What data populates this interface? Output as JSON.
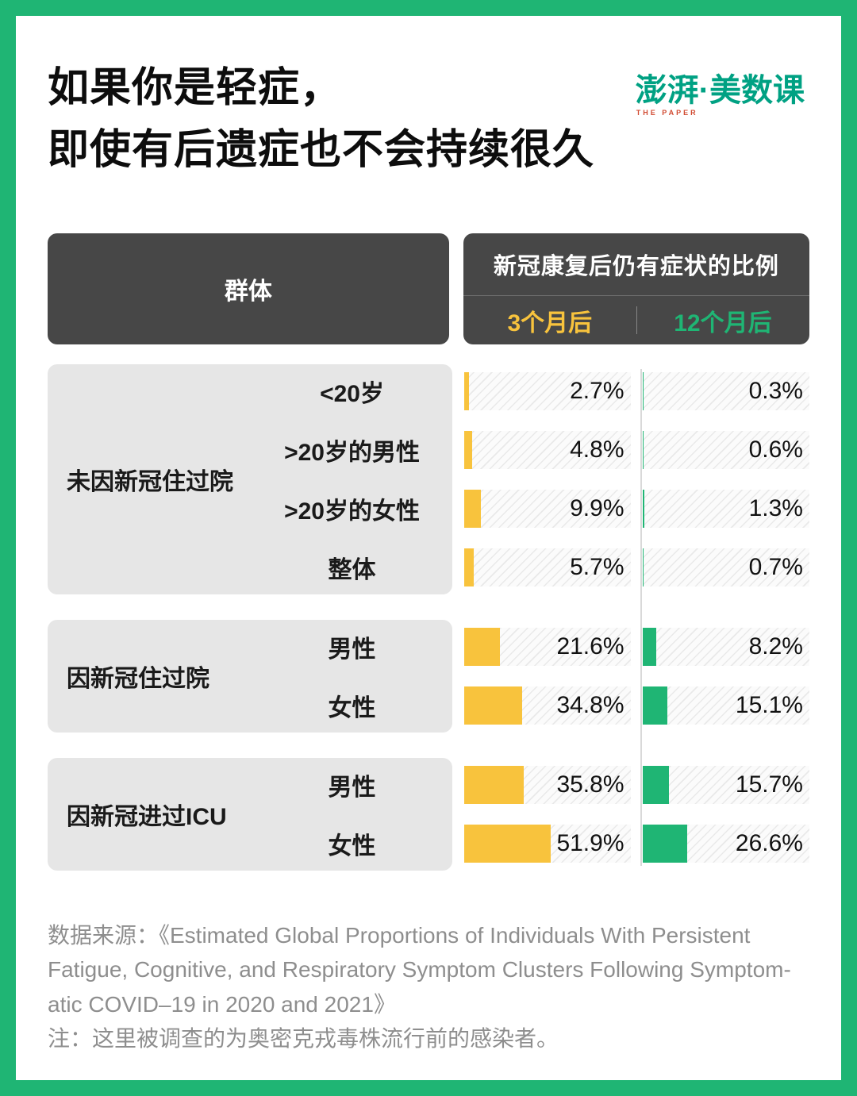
{
  "colors": {
    "frame": "#1FB574",
    "dark": "#474747",
    "yellow": "#F8C33D",
    "green": "#1FB574",
    "brand": "#00A183",
    "group_bg": "#E6E6E6"
  },
  "header": {
    "title_lines": [
      "如果你是轻症，",
      "即使有后遗症也不会持续很久"
    ],
    "logo": {
      "main": "澎湃",
      "sub": "THE PAPER",
      "rest": "·美数课"
    }
  },
  "table": {
    "group_col_header": "群体",
    "value_header": "新冠康复后仍有症状的比例",
    "col_3m": "3个月后",
    "col_12m": "12个月后",
    "groups": [
      {
        "label": "未因新冠住过院",
        "rows": [
          {
            "label": "<20岁",
            "m3": 2.7,
            "m3_label": "2.7%",
            "m12": 0.3,
            "m12_label": "0.3%"
          },
          {
            "label": ">20岁的男性",
            "m3": 4.8,
            "m3_label": "4.8%",
            "m12": 0.6,
            "m12_label": "0.6%"
          },
          {
            "label": ">20岁的女性",
            "m3": 9.9,
            "m3_label": "9.9%",
            "m12": 1.3,
            "m12_label": "1.3%"
          },
          {
            "label": "整体",
            "m3": 5.7,
            "m3_label": "5.7%",
            "m12": 0.7,
            "m12_label": "0.7%"
          }
        ]
      },
      {
        "label": "因新冠住过院",
        "rows": [
          {
            "label": "男性",
            "m3": 21.6,
            "m3_label": "21.6%",
            "m12": 8.2,
            "m12_label": "8.2%"
          },
          {
            "label": "女性",
            "m3": 34.8,
            "m3_label": "34.8%",
            "m12": 15.1,
            "m12_label": "15.1%"
          }
        ]
      },
      {
        "label": "因新冠进过ICU",
        "rows": [
          {
            "label": "男性",
            "m3": 35.8,
            "m3_label": "35.8%",
            "m12": 15.7,
            "m12_label": "15.7%"
          },
          {
            "label": "女性",
            "m3": 51.9,
            "m3_label": "51.9%",
            "m12": 26.6,
            "m12_label": "26.6%"
          }
        ]
      }
    ]
  },
  "footer": {
    "lines": [
      "数据来源：《Estimated Global Proportions of Individuals With Persistent",
      "Fatigue, Cognitive, and Respiratory Symptom Clusters Following Symptom-",
      "atic COVID–19 in 2020 and 2021》",
      "注：这里被调查的为奥密克戎毒株流行前的感染者。"
    ]
  },
  "chart_data": {
    "type": "bar",
    "title": "如果你是轻症，即使有后遗症也不会持续很久",
    "categories": [
      "未因新冠住过院 / <20岁",
      "未因新冠住过院 / >20岁的男性",
      "未因新冠住过院 / >20岁的女性",
      "未因新冠住过院 / 整体",
      "因新冠住过院 / 男性",
      "因新冠住过院 / 女性",
      "因新冠进过ICU / 男性",
      "因新冠进过ICU / 女性"
    ],
    "series": [
      {
        "name": "3个月后",
        "color": "#F8C33D",
        "values": [
          2.7,
          4.8,
          9.9,
          5.7,
          21.6,
          34.8,
          35.8,
          51.9
        ]
      },
      {
        "name": "12个月后",
        "color": "#1FB574",
        "values": [
          0.3,
          0.6,
          1.3,
          0.7,
          8.2,
          15.1,
          15.7,
          26.6
        ]
      }
    ],
    "unit": "%",
    "xlabel": "新冠康复后仍有症状的比例",
    "ylabel": "群体",
    "xlim": [
      0,
      100
    ],
    "orientation": "horizontal",
    "legend_position": "column-headers",
    "grid": false
  }
}
